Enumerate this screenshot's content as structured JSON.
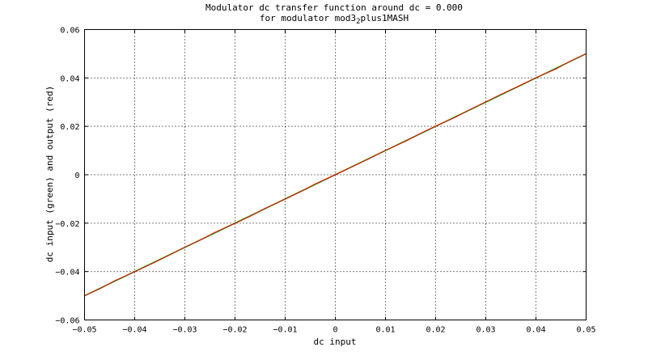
{
  "chart_data": {
    "type": "line",
    "title_line1": "Modulator dc transfer function around dc = 0.000",
    "title_line2_prefix": "for modulator mod3",
    "title_line2_sub": "2",
    "title_line2_suffix": "plus1MASH",
    "xlabel": "dc input",
    "ylabel": "dc input (green) and output (red)",
    "xlim": [
      -0.05,
      0.05
    ],
    "ylim": [
      -0.06,
      0.06
    ],
    "x_ticks": [
      -0.05,
      -0.04,
      -0.03,
      -0.02,
      -0.01,
      0,
      0.01,
      0.02,
      0.03,
      0.04,
      0.05
    ],
    "x_tick_labels": [
      "−0.05",
      "−0.04",
      "−0.03",
      "−0.02",
      "−0.01",
      "0",
      "0.01",
      "0.02",
      "0.03",
      "0.04",
      "0.05"
    ],
    "y_ticks": [
      -0.06,
      -0.04,
      -0.02,
      0,
      0.02,
      0.04,
      0.06
    ],
    "y_tick_labels": [
      "−0.06",
      "−0.04",
      "−0.02",
      "0",
      "0.02",
      "0.04",
      "0.06"
    ],
    "grid": true,
    "series": [
      {
        "color": "#00aa00",
        "x": [
          -0.05,
          0.05
        ],
        "y": [
          -0.05,
          0.05
        ]
      },
      {
        "color": "#ff0000",
        "x": [
          -0.05,
          -0.047,
          -0.044,
          -0.04,
          -0.036,
          -0.033,
          -0.03,
          -0.027,
          -0.024,
          -0.02,
          -0.017,
          -0.014,
          -0.01,
          -0.007,
          -0.004,
          0,
          0.004,
          0.007,
          0.01,
          0.014,
          0.017,
          0.02,
          0.024,
          0.027,
          0.03,
          0.033,
          0.036,
          0.04,
          0.044,
          0.047,
          0.05
        ],
        "y": [
          -0.05,
          -0.0472,
          -0.0438,
          -0.0401,
          -0.0362,
          -0.0331,
          -0.0299,
          -0.0271,
          -0.0238,
          -0.0201,
          -0.0172,
          -0.0139,
          -0.0101,
          -0.0071,
          -0.0038,
          0.0,
          0.0039,
          0.0069,
          0.0101,
          0.0138,
          0.0171,
          0.0201,
          0.0238,
          0.0271,
          0.0301,
          0.0332,
          0.0361,
          0.0401,
          0.0437,
          0.0471,
          0.05
        ]
      }
    ]
  }
}
